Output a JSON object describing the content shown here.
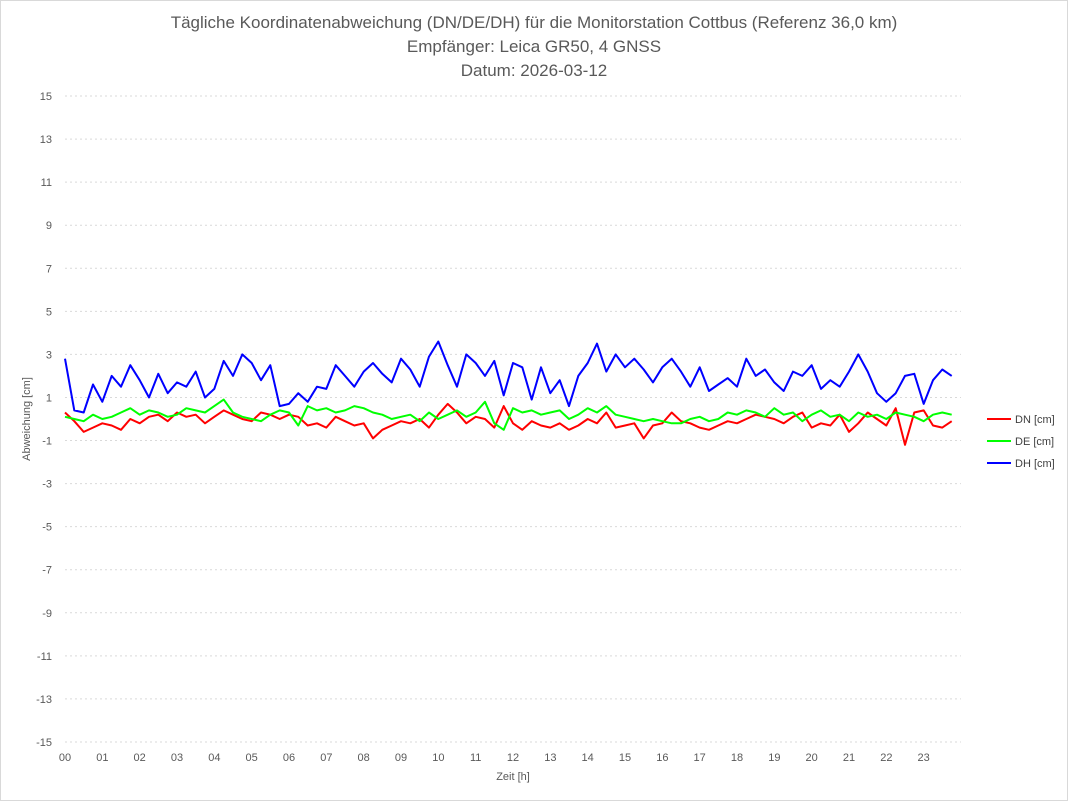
{
  "chart_data": {
    "type": "line",
    "title": "Tägliche Koordinatenabweichung (DN/DE/DH) für die Monitorstation Cottbus (Referenz 36,0 km)",
    "subtitle": "Empfänger: Leica GR50, 4 GNSS",
    "date_label": "Datum: 2026-03-12",
    "xlabel": "Zeit [h]",
    "ylabel": "Abweichung [cm]",
    "xlim": [
      0,
      24
    ],
    "ylim": [
      -15,
      15
    ],
    "y_ticks": [
      "15",
      "13",
      "11",
      "9",
      "7",
      "5",
      "3",
      "1",
      "-1",
      "-3",
      "-5",
      "-7",
      "-9",
      "-11",
      "-13",
      "-15"
    ],
    "x_ticks": [
      "00",
      "01",
      "02",
      "03",
      "04",
      "05",
      "06",
      "07",
      "08",
      "09",
      "10",
      "11",
      "12",
      "13",
      "14",
      "15",
      "16",
      "17",
      "18",
      "19",
      "20",
      "21",
      "22",
      "23"
    ],
    "grid": true,
    "legend_position": "right",
    "x": [
      0,
      0.25,
      0.5,
      0.75,
      1,
      1.25,
      1.5,
      1.75,
      2,
      2.25,
      2.5,
      2.75,
      3,
      3.25,
      3.5,
      3.75,
      4,
      4.25,
      4.5,
      4.75,
      5,
      5.25,
      5.5,
      5.75,
      6,
      6.25,
      6.5,
      6.75,
      7,
      7.25,
      7.5,
      7.75,
      8,
      8.25,
      8.5,
      8.75,
      9,
      9.25,
      9.5,
      9.75,
      10,
      10.25,
      10.5,
      10.75,
      11,
      11.25,
      11.5,
      11.75,
      12,
      12.25,
      12.5,
      12.75,
      13,
      13.25,
      13.5,
      13.75,
      14,
      14.25,
      14.5,
      14.75,
      15,
      15.25,
      15.5,
      15.75,
      16,
      16.25,
      16.5,
      16.75,
      17,
      17.25,
      17.5,
      17.75,
      18,
      18.25,
      18.5,
      18.75,
      19,
      19.25,
      19.5,
      19.75,
      20,
      20.25,
      20.5,
      20.75,
      21,
      21.25,
      21.5,
      21.75,
      22,
      22.25,
      22.5,
      22.75,
      23,
      23.25,
      23.5,
      23.75
    ],
    "series": [
      {
        "name": "DN [cm]",
        "color": "#ff0000",
        "values": [
          0.3,
          -0.1,
          -0.6,
          -0.4,
          -0.2,
          -0.3,
          -0.5,
          0.0,
          -0.2,
          0.1,
          0.2,
          -0.1,
          0.3,
          0.1,
          0.2,
          -0.2,
          0.1,
          0.4,
          0.2,
          0.0,
          -0.1,
          0.3,
          0.2,
          0.0,
          0.2,
          0.1,
          -0.3,
          -0.2,
          -0.4,
          0.1,
          -0.1,
          -0.3,
          -0.2,
          -0.9,
          -0.5,
          -0.3,
          -0.1,
          -0.2,
          0.0,
          -0.4,
          0.2,
          0.7,
          0.3,
          -0.2,
          0.1,
          0.0,
          -0.4,
          0.6,
          -0.2,
          -0.5,
          -0.1,
          -0.3,
          -0.4,
          -0.2,
          -0.5,
          -0.3,
          0.0,
          -0.2,
          0.3,
          -0.4,
          -0.3,
          -0.2,
          -0.9,
          -0.3,
          -0.2,
          0.3,
          -0.1,
          -0.2,
          -0.4,
          -0.5,
          -0.3,
          -0.1,
          -0.2,
          0.0,
          0.2,
          0.1,
          0.0,
          -0.2,
          0.1,
          0.3,
          -0.4,
          -0.2,
          -0.3,
          0.2,
          -0.6,
          -0.2,
          0.3,
          0.0,
          -0.3,
          0.5,
          -1.2,
          0.3,
          0.4,
          -0.3,
          -0.4,
          -0.1
        ]
      },
      {
        "name": "DE [cm]",
        "color": "#00ff00",
        "values": [
          0.1,
          0.0,
          -0.1,
          0.2,
          0.0,
          0.1,
          0.3,
          0.5,
          0.2,
          0.4,
          0.3,
          0.1,
          0.2,
          0.5,
          0.4,
          0.3,
          0.6,
          0.9,
          0.3,
          0.1,
          0.0,
          -0.1,
          0.2,
          0.4,
          0.3,
          -0.3,
          0.6,
          0.4,
          0.5,
          0.3,
          0.4,
          0.6,
          0.5,
          0.3,
          0.2,
          0.0,
          0.1,
          0.2,
          -0.1,
          0.3,
          0.0,
          0.2,
          0.4,
          0.1,
          0.3,
          0.8,
          -0.2,
          -0.5,
          0.5,
          0.3,
          0.4,
          0.2,
          0.3,
          0.4,
          0.0,
          0.2,
          0.5,
          0.3,
          0.6,
          0.2,
          0.1,
          0.0,
          -0.1,
          0.0,
          -0.1,
          -0.2,
          -0.2,
          0.0,
          0.1,
          -0.1,
          0.0,
          0.3,
          0.2,
          0.4,
          0.3,
          0.1,
          0.5,
          0.2,
          0.3,
          -0.1,
          0.2,
          0.4,
          0.1,
          0.2,
          -0.1,
          0.3,
          0.1,
          0.2,
          0.0,
          0.3,
          0.2,
          0.1,
          -0.1,
          0.2,
          0.3,
          0.2
        ]
      },
      {
        "name": "DH [cm]",
        "color": "#0000ff",
        "values": [
          2.8,
          0.4,
          0.3,
          1.6,
          0.8,
          2.0,
          1.5,
          2.5,
          1.8,
          1.0,
          2.1,
          1.2,
          1.7,
          1.5,
          2.2,
          1.0,
          1.4,
          2.7,
          2.0,
          3.0,
          2.6,
          1.8,
          2.5,
          0.6,
          0.7,
          1.2,
          0.8,
          1.5,
          1.4,
          2.5,
          2.0,
          1.5,
          2.2,
          2.6,
          2.1,
          1.7,
          2.8,
          2.3,
          1.5,
          2.9,
          3.6,
          2.5,
          1.5,
          3.0,
          2.6,
          2.0,
          2.7,
          1.1,
          2.6,
          2.4,
          0.9,
          2.4,
          1.2,
          1.8,
          0.6,
          2.0,
          2.6,
          3.5,
          2.2,
          3.0,
          2.4,
          2.8,
          2.3,
          1.7,
          2.4,
          2.8,
          2.2,
          1.5,
          2.4,
          1.3,
          1.6,
          1.9,
          1.5,
          2.8,
          2.0,
          2.3,
          1.7,
          1.3,
          2.2,
          2.0,
          2.5,
          1.4,
          1.8,
          1.5,
          2.2,
          3.0,
          2.2,
          1.2,
          0.8,
          1.2,
          2.0,
          2.1,
          0.7,
          1.8,
          2.3,
          2.0
        ]
      }
    ]
  }
}
